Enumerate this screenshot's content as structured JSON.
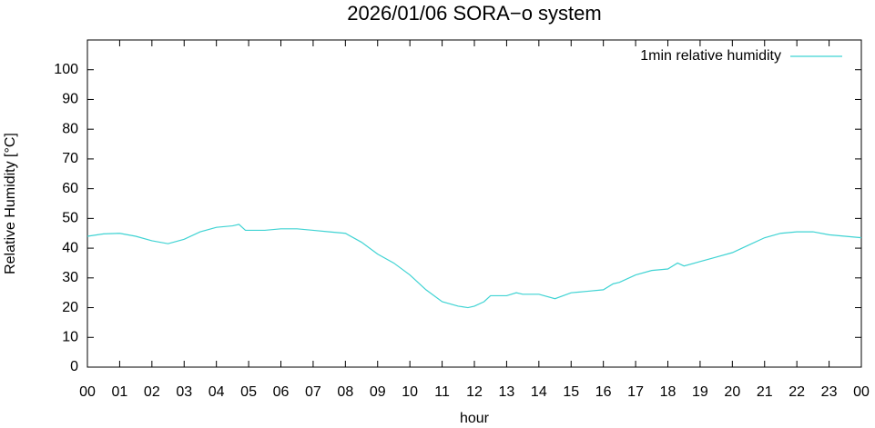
{
  "chart_data": {
    "type": "line",
    "title": "2026/01/06 SORA−o system",
    "x_label": "hour",
    "y_label": "Relative Humidity [°C]",
    "legend": "top-right",
    "xlim": [
      0,
      24
    ],
    "xticks": [
      {
        "value": 0,
        "label": "00"
      },
      {
        "value": 1,
        "label": "01"
      },
      {
        "value": 2,
        "label": "02"
      },
      {
        "value": 3,
        "label": "03"
      },
      {
        "value": 4,
        "label": "04"
      },
      {
        "value": 5,
        "label": "05"
      },
      {
        "value": 6,
        "label": "06"
      },
      {
        "value": 7,
        "label": "07"
      },
      {
        "value": 8,
        "label": "08"
      },
      {
        "value": 9,
        "label": "09"
      },
      {
        "value": 10,
        "label": "10"
      },
      {
        "value": 11,
        "label": "11"
      },
      {
        "value": 12,
        "label": "12"
      },
      {
        "value": 13,
        "label": "13"
      },
      {
        "value": 14,
        "label": "14"
      },
      {
        "value": 15,
        "label": "15"
      },
      {
        "value": 16,
        "label": "16"
      },
      {
        "value": 17,
        "label": "17"
      },
      {
        "value": 18,
        "label": "18"
      },
      {
        "value": 19,
        "label": "19"
      },
      {
        "value": 20,
        "label": "20"
      },
      {
        "value": 21,
        "label": "21"
      },
      {
        "value": 22,
        "label": "22"
      },
      {
        "value": 23,
        "label": "23"
      },
      {
        "value": 24,
        "label": "00"
      }
    ],
    "ylim": [
      0,
      110
    ],
    "yticks": [
      0,
      10,
      20,
      30,
      40,
      50,
      60,
      70,
      80,
      90,
      100
    ],
    "x": [
      0,
      0.5,
      1,
      1.5,
      2,
      2.5,
      3,
      3.5,
      4,
      4.5,
      4.7,
      4.9,
      5,
      5.5,
      6,
      6.5,
      7,
      7.5,
      8,
      8.5,
      9,
      9.5,
      10,
      10.5,
      11,
      11.5,
      11.8,
      12,
      12.3,
      12.5,
      13,
      13.3,
      13.5,
      14,
      14.5,
      15,
      15.5,
      16,
      16.3,
      16.5,
      17,
      17.5,
      18,
      18.3,
      18.5,
      19,
      19.5,
      20,
      20.5,
      21,
      21.5,
      22,
      22.5,
      23,
      23.5,
      24
    ],
    "series": [
      {
        "name": "1min relative humidity",
        "color": "#3fd3d3",
        "values": [
          44,
          44.8,
          45,
          44,
          42.5,
          41.5,
          43,
          45.5,
          47,
          47.5,
          48,
          46,
          46,
          46,
          46.5,
          46.5,
          46,
          45.5,
          45,
          42,
          38,
          35,
          31,
          26,
          22,
          20.5,
          20,
          20.5,
          22,
          24,
          24,
          25,
          24.5,
          24.5,
          23,
          25,
          25.5,
          26,
          28,
          28.5,
          31,
          32.5,
          33,
          35,
          34,
          35.5,
          37,
          38.5,
          41,
          43.5,
          45,
          45.5,
          45.5,
          44.5,
          44,
          43.5
        ]
      }
    ]
  }
}
